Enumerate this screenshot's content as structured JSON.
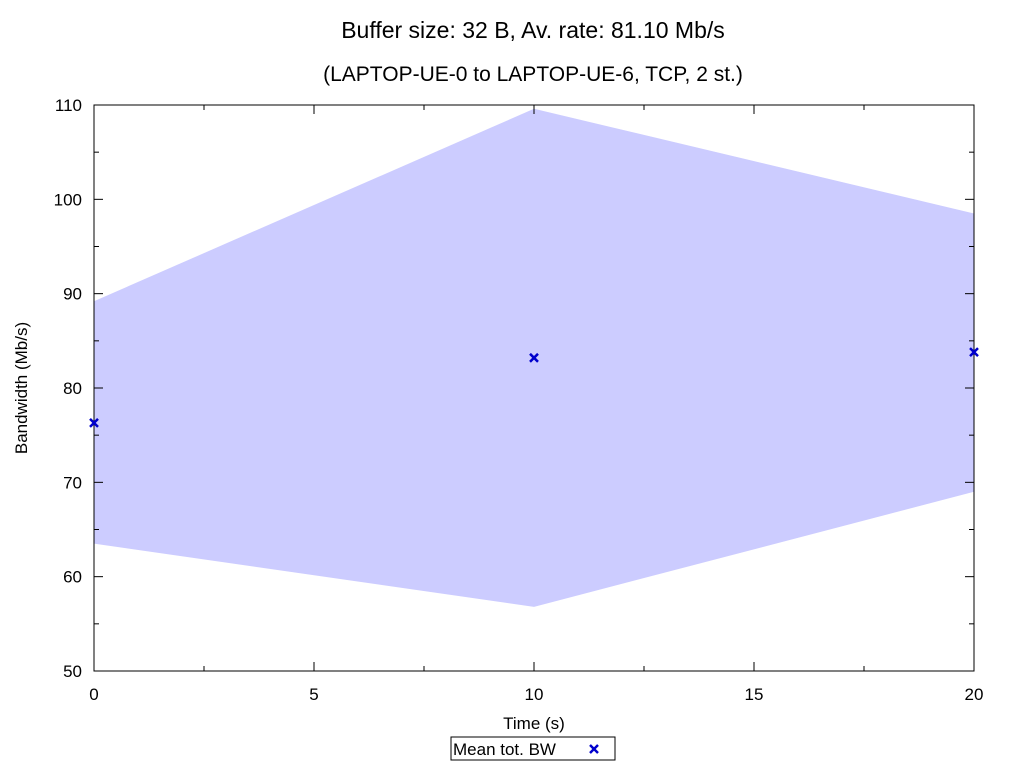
{
  "chart_data": {
    "type": "line",
    "title": "Buffer size: 32 B, Av. rate: 81.10 Mb/s",
    "subtitle": "(LAPTOP-UE-0 to LAPTOP-UE-6, TCP, 2 st.)",
    "xlabel": "Time (s)",
    "ylabel": "Bandwidth (Mb/s)",
    "xlim": [
      0,
      20
    ],
    "ylim": [
      50,
      110
    ],
    "x_ticks": [
      "0",
      "5",
      "10",
      "15",
      "20"
    ],
    "y_ticks": [
      "50",
      "60",
      "70",
      "80",
      "90",
      "100",
      "110"
    ],
    "grid": false,
    "legend_position": "bottom-center",
    "band": {
      "x": [
        0,
        10,
        20
      ],
      "upper": [
        89.2,
        109.6,
        98.5
      ],
      "lower": [
        63.5,
        56.8,
        69.0
      ],
      "color": "#ccccff"
    },
    "series": [
      {
        "name": "Mean tot. BW",
        "x": [
          0,
          10,
          20
        ],
        "values": [
          76.3,
          83.2,
          83.8
        ],
        "marker": "x",
        "color": "#0000cc"
      }
    ]
  }
}
